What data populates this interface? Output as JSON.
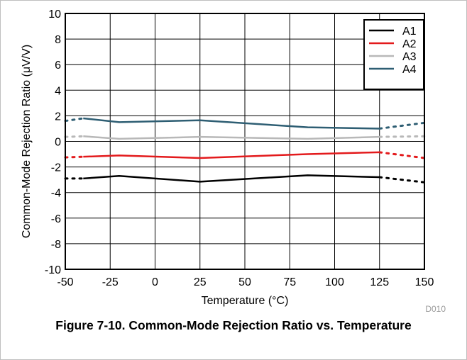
{
  "chart_data": {
    "type": "line",
    "xlabel": "Temperature (°C)",
    "ylabel": "Common-Mode Rejection Ratio (μV/V)",
    "xlim": [
      -50,
      150
    ],
    "ylim": [
      -10,
      10
    ],
    "x_ticks": [
      "-50",
      "-25",
      "0",
      "25",
      "50",
      "75",
      "100",
      "125",
      "150"
    ],
    "y_ticks": [
      "10",
      "8",
      "6",
      "4",
      "2",
      "0",
      "-2",
      "-4",
      "-6",
      "-8",
      "-10"
    ],
    "grid": true,
    "legend_position": "top-right",
    "watermark": "D010",
    "series": [
      {
        "name": "A1",
        "color": "#000000",
        "solid": {
          "x": [
            -40,
            -20,
            25,
            85,
            125
          ],
          "y": [
            -2.9,
            -2.7,
            -3.15,
            -2.65,
            -2.8
          ]
        },
        "dotted": [
          {
            "x": [
              -50,
              -40
            ],
            "y": [
              -2.9,
              -2.9
            ]
          },
          {
            "x": [
              125,
              150
            ],
            "y": [
              -2.8,
              -3.2
            ]
          }
        ]
      },
      {
        "name": "A2",
        "color": "#e31a1c",
        "solid": {
          "x": [
            -40,
            -20,
            25,
            85,
            125
          ],
          "y": [
            -1.2,
            -1.1,
            -1.3,
            -1.0,
            -0.85
          ]
        },
        "dotted": [
          {
            "x": [
              -50,
              -40
            ],
            "y": [
              -1.25,
              -1.2
            ]
          },
          {
            "x": [
              125,
              150
            ],
            "y": [
              -0.85,
              -1.3
            ]
          }
        ]
      },
      {
        "name": "A3",
        "color": "#b8b8b8",
        "solid": {
          "x": [
            -40,
            -20,
            25,
            85,
            125
          ],
          "y": [
            0.4,
            0.2,
            0.35,
            0.2,
            0.35
          ]
        },
        "dotted": [
          {
            "x": [
              -50,
              -40
            ],
            "y": [
              0.35,
              0.4
            ]
          },
          {
            "x": [
              125,
              150
            ],
            "y": [
              0.35,
              0.4
            ]
          }
        ]
      },
      {
        "name": "A4",
        "color": "#2e5e73",
        "solid": {
          "x": [
            -40,
            -20,
            25,
            85,
            125
          ],
          "y": [
            1.8,
            1.5,
            1.65,
            1.1,
            1.0
          ]
        },
        "dotted": [
          {
            "x": [
              -50,
              -40
            ],
            "y": [
              1.6,
              1.8
            ]
          },
          {
            "x": [
              125,
              150
            ],
            "y": [
              1.0,
              1.45
            ]
          }
        ]
      }
    ]
  },
  "caption": "Figure 7-10. Common-Mode Rejection Ratio vs. Temperature"
}
